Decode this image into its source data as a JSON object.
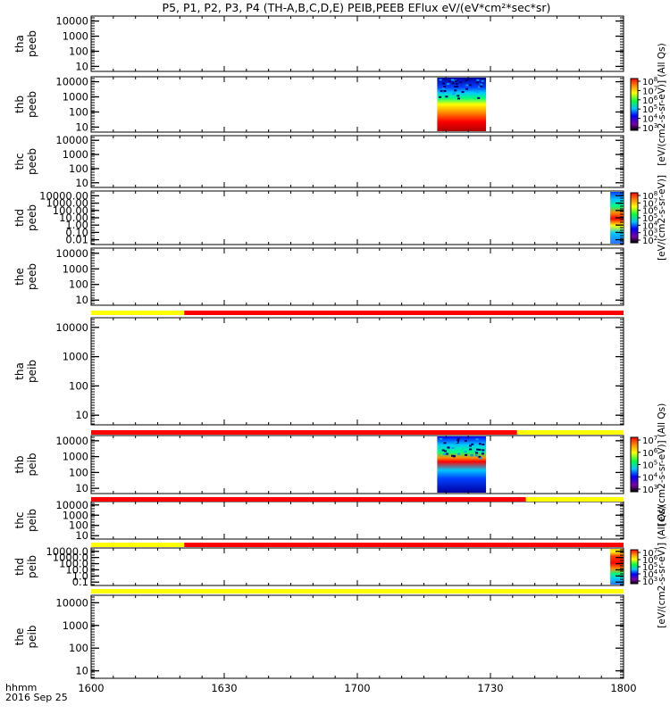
{
  "title": "P5, P1, P2, P3, P4 (TH-A,B,C,D,E) PEIB,PEEB EFlux eV/(eV*cm²*sec*sr)",
  "time_axis": {
    "label_line1": "hhmm",
    "label_line2": "2016 Sep 25",
    "ticks": [
      "1600",
      "1630",
      "1700",
      "1730",
      "1800"
    ],
    "tick_values": [
      1600,
      1630,
      1700,
      1730,
      1800
    ]
  },
  "colors": {
    "flag_yellow": "#ffff00",
    "flag_red": "#ff0000"
  },
  "chart_data": [
    {
      "type": "heatmap",
      "probe": "tha",
      "species": "peeb",
      "ylabel": [
        "tha",
        "peeb"
      ],
      "yticks": [
        "10000",
        "1000",
        "100",
        "10"
      ],
      "y_scale": "log",
      "data": "none"
    },
    {
      "type": "heatmap",
      "probe": "thb",
      "species": "peeb",
      "ylabel": [
        "thb",
        "peeb"
      ],
      "yticks": [
        "10000",
        "1000",
        "100",
        "10"
      ],
      "y_scale": "log",
      "data_time_range": [
        "1718",
        "1729"
      ],
      "colorbar": {
        "ticks": [
          "10^8",
          "10^7",
          "10^6",
          "10^5",
          "10^4",
          "10^3"
        ],
        "label": "[eV/(cm2-s-sr-eV)] (All Qs)"
      }
    },
    {
      "type": "heatmap",
      "probe": "thc",
      "species": "peeb",
      "ylabel": [
        "thc",
        "peeb"
      ],
      "yticks": [
        "10000",
        "1000",
        "100",
        "10"
      ],
      "y_scale": "log",
      "data": "none"
    },
    {
      "type": "heatmap",
      "probe": "thd",
      "species": "peeb",
      "ylabel": [
        "thd",
        "peeb"
      ],
      "yticks": [
        "10000.00",
        "1000.00",
        "100.00",
        "10.00",
        "1.00",
        "0.10",
        "0.01"
      ],
      "y_scale": "log",
      "data_time_range": [
        "1757",
        "1800"
      ],
      "colorbar": {
        "ticks": [
          "10^8",
          "10^7",
          "10^6",
          "10^5",
          "10^4",
          "10^3",
          "10^2"
        ],
        "label": "[eV/(cm2-s-sr-eV)]"
      }
    },
    {
      "type": "heatmap",
      "probe": "the",
      "species": "peeb",
      "ylabel": [
        "the",
        "peeb"
      ],
      "yticks": [
        "10000",
        "1000",
        "100",
        "10"
      ],
      "y_scale": "log",
      "data": "none"
    },
    {
      "type": "heatmap",
      "probe": "tha",
      "species": "peib",
      "ylabel": [
        "tha",
        "peib"
      ],
      "yticks": [
        "10000",
        "1000",
        "100",
        "10"
      ],
      "y_scale": "log",
      "data": "none"
    },
    {
      "type": "heatmap",
      "probe": "thb",
      "species": "peib",
      "ylabel": [
        "thb",
        "peib"
      ],
      "yticks": [
        "10000",
        "1000",
        "100",
        "10"
      ],
      "y_scale": "log",
      "data_time_range": [
        "1718",
        "1729"
      ],
      "colorbar": {
        "ticks": [
          "10^7",
          "10^6",
          "10^5",
          "10^4",
          "10^3"
        ],
        "label": "[eV/(cm2-s-sr-eV)] (All Qs)"
      }
    },
    {
      "type": "heatmap",
      "probe": "thc",
      "species": "peib",
      "ylabel": [
        "thc",
        "peib"
      ],
      "yticks": [
        "10000",
        "1000",
        "100",
        "10"
      ],
      "y_scale": "log",
      "data": "none"
    },
    {
      "type": "heatmap",
      "probe": "thd",
      "species": "peib",
      "ylabel": [
        "thd",
        "peib"
      ],
      "yticks": [
        "10000.0",
        "1000.0",
        "100.0",
        "10.0",
        "1.0",
        "0.1"
      ],
      "y_scale": "log",
      "data_time_range": [
        "1757",
        "1800"
      ],
      "colorbar": {
        "ticks": [
          "10^7",
          "10^6",
          "10^5",
          "10^4",
          "10^3"
        ],
        "label": "[eV/(cm2-s-sr-eV)] (All Qs)"
      }
    },
    {
      "type": "heatmap",
      "probe": "the",
      "species": "peib",
      "ylabel": [
        "the",
        "peib"
      ],
      "yticks": [
        "10000",
        "1000",
        "100",
        "10"
      ],
      "y_scale": "log",
      "data": "none"
    }
  ],
  "flag_bars": [
    {
      "after_panel": 4,
      "segments": [
        {
          "from": 1600,
          "to": 1621,
          "color": "yellow"
        },
        {
          "from": 1621,
          "to": 1800,
          "color": "red"
        }
      ]
    },
    {
      "after_panel": 5,
      "segments": [
        {
          "from": 1600,
          "to": 1736,
          "color": "red"
        },
        {
          "from": 1736,
          "to": 1800,
          "color": "yellow"
        }
      ]
    },
    {
      "after_panel": 6,
      "segments": [
        {
          "from": 1600,
          "to": 1738,
          "color": "red"
        },
        {
          "from": 1738,
          "to": 1800,
          "color": "yellow"
        }
      ]
    },
    {
      "after_panel": 7,
      "segments": [
        {
          "from": 1600,
          "to": 1621,
          "color": "yellow"
        },
        {
          "from": 1621,
          "to": 1800,
          "color": "red"
        }
      ]
    },
    {
      "after_panel": 8,
      "segments": [
        {
          "from": 1600,
          "to": 1800,
          "color": "yellow"
        }
      ]
    }
  ]
}
